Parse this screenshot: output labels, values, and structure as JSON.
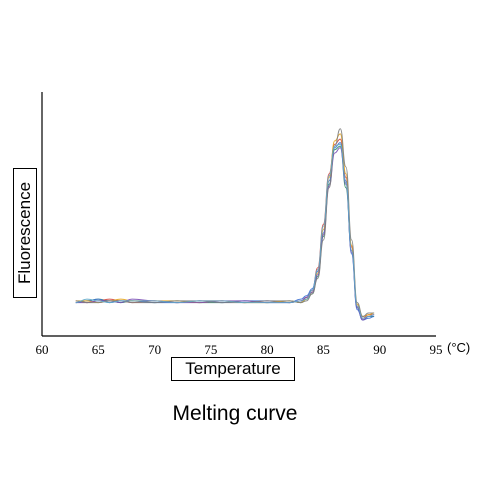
{
  "chart_data": {
    "type": "line",
    "title": "Melting curve",
    "xlabel": "Temperature",
    "ylabel": "Fluorescence",
    "x_unit": "(°C)",
    "xlim": [
      60,
      95
    ],
    "ylim": [
      -0.1,
      1.05
    ],
    "xticks": [
      60,
      65,
      70,
      75,
      80,
      85,
      90,
      95
    ],
    "grid": false,
    "legend": "none",
    "series": [
      {
        "color": "#2f8f6a",
        "x": [
          63,
          64,
          65,
          66,
          67,
          68,
          70,
          72,
          74,
          76,
          78,
          80,
          82,
          83,
          83.5,
          84,
          84.5,
          85,
          85.5,
          86,
          86.5,
          87,
          87.5,
          88,
          88.5,
          89,
          89.5
        ],
        "values": [
          0.0,
          0.01,
          0.02,
          0.01,
          0.0,
          0.01,
          0.0,
          0.01,
          0.0,
          0.0,
          0.01,
          0.0,
          0.01,
          0.0,
          0.02,
          0.05,
          0.15,
          0.38,
          0.68,
          0.88,
          0.9,
          0.66,
          0.3,
          -0.03,
          -0.1,
          -0.08,
          -0.08
        ]
      },
      {
        "color": "#d1453b",
        "x": [
          63,
          64,
          65,
          66,
          67,
          68,
          70,
          72,
          74,
          76,
          78,
          80,
          82,
          83,
          83.5,
          84,
          84.5,
          85,
          85.5,
          86,
          86.5,
          87,
          87.5,
          88,
          88.5,
          89,
          89.5
        ],
        "values": [
          0.01,
          0.0,
          0.01,
          0.02,
          0.01,
          0.0,
          0.01,
          0.0,
          0.01,
          0.01,
          0.0,
          0.01,
          0.0,
          0.01,
          0.03,
          0.07,
          0.2,
          0.45,
          0.74,
          0.91,
          0.94,
          0.72,
          0.32,
          -0.02,
          -0.09,
          -0.07,
          -0.07
        ]
      },
      {
        "color": "#3b6fd1",
        "x": [
          63,
          64,
          65,
          66,
          67,
          68,
          70,
          72,
          74,
          76,
          78,
          80,
          82,
          83,
          83.5,
          84,
          84.5,
          85,
          85.5,
          86,
          86.5,
          87,
          87.5,
          88,
          88.5,
          89,
          89.5
        ],
        "values": [
          0.0,
          0.01,
          0.02,
          0.0,
          0.01,
          0.01,
          0.0,
          0.0,
          0.01,
          0.0,
          0.01,
          0.01,
          0.0,
          0.02,
          0.04,
          0.08,
          0.18,
          0.4,
          0.7,
          0.89,
          0.92,
          0.7,
          0.28,
          -0.04,
          -0.1,
          -0.09,
          -0.08
        ]
      },
      {
        "color": "#e3a21a",
        "x": [
          63,
          64,
          65,
          66,
          67,
          68,
          70,
          72,
          74,
          76,
          78,
          80,
          82,
          83,
          83.5,
          84,
          84.5,
          85,
          85.5,
          86,
          86.5,
          87,
          87.5,
          88,
          88.5,
          89,
          89.5
        ],
        "values": [
          0.01,
          0.01,
          0.0,
          0.01,
          0.02,
          0.01,
          0.01,
          0.01,
          0.0,
          0.01,
          0.0,
          0.0,
          0.01,
          0.0,
          0.02,
          0.06,
          0.17,
          0.42,
          0.72,
          0.93,
          0.97,
          0.74,
          0.33,
          -0.01,
          -0.08,
          -0.07,
          -0.06
        ]
      },
      {
        "color": "#7a4fb5",
        "x": [
          63,
          64,
          65,
          66,
          67,
          68,
          70,
          72,
          74,
          76,
          78,
          80,
          82,
          83,
          83.5,
          84,
          84.5,
          85,
          85.5,
          86,
          86.5,
          87,
          87.5,
          88,
          88.5,
          89,
          89.5
        ],
        "values": [
          0.0,
          0.0,
          0.01,
          0.01,
          0.0,
          0.02,
          0.01,
          0.0,
          0.0,
          0.01,
          0.01,
          0.0,
          0.0,
          0.01,
          0.03,
          0.06,
          0.16,
          0.39,
          0.67,
          0.86,
          0.89,
          0.68,
          0.29,
          -0.03,
          -0.1,
          -0.08,
          -0.07
        ]
      },
      {
        "color": "#808080",
        "x": [
          63,
          64,
          65,
          66,
          67,
          68,
          70,
          72,
          74,
          76,
          78,
          80,
          82,
          83,
          83.5,
          84,
          84.5,
          85,
          85.5,
          86,
          86.5,
          87,
          87.5,
          88,
          88.5,
          89,
          89.5
        ],
        "values": [
          0.01,
          0.0,
          0.0,
          0.01,
          0.01,
          0.0,
          0.0,
          0.01,
          0.01,
          0.0,
          0.0,
          0.01,
          0.01,
          0.0,
          0.01,
          0.05,
          0.14,
          0.36,
          0.66,
          0.9,
          1.0,
          0.78,
          0.36,
          0.0,
          -0.08,
          -0.06,
          -0.06
        ]
      },
      {
        "color": "#5fa8c9",
        "x": [
          63,
          64,
          65,
          66,
          67,
          68,
          70,
          72,
          74,
          76,
          78,
          80,
          82,
          83,
          83.5,
          84,
          84.5,
          85,
          85.5,
          86,
          86.5,
          87,
          87.5,
          88,
          88.5,
          89,
          89.5
        ],
        "values": [
          0.0,
          0.02,
          0.01,
          0.0,
          0.01,
          0.01,
          0.01,
          0.0,
          0.01,
          0.01,
          0.0,
          0.0,
          0.0,
          0.01,
          0.02,
          0.07,
          0.19,
          0.44,
          0.73,
          0.9,
          0.91,
          0.69,
          0.3,
          -0.02,
          -0.09,
          -0.08,
          -0.07
        ]
      }
    ]
  }
}
